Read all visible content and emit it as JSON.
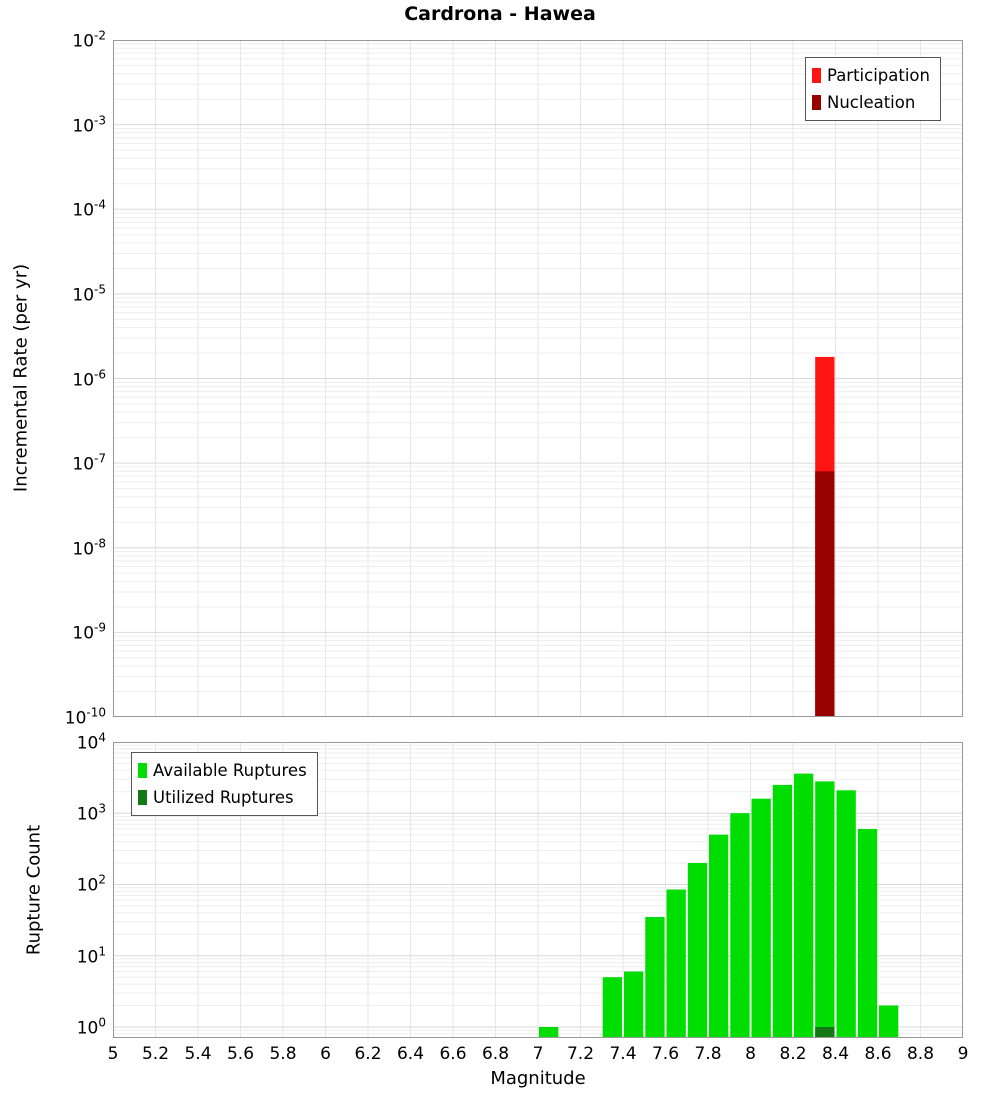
{
  "chart_data": [
    {
      "type": "bar",
      "title": "Cardrona - Hawea",
      "xlabel": "",
      "ylabel": "Incremental Rate (per yr)",
      "xscale": "linear",
      "yscale": "log",
      "xlim": [
        5,
        9
      ],
      "ylim": [
        1e-10,
        0.01
      ],
      "y_tick_exponents": [
        -2,
        -3,
        -4,
        -5,
        -6,
        -7,
        -8,
        -9,
        -10
      ],
      "bar_width": 0.1,
      "grid": true,
      "legend_position": "top-right",
      "series": [
        {
          "name": "Participation",
          "color": "#ff1414",
          "points": [
            {
              "x": 8.35,
              "y": 1.8e-06
            }
          ]
        },
        {
          "name": "Nucleation",
          "color": "#990000",
          "points": [
            {
              "x": 8.35,
              "y": 8e-08
            }
          ]
        }
      ]
    },
    {
      "type": "bar",
      "title": "",
      "xlabel": "Magnitude",
      "ylabel": "Rupture Count",
      "xscale": "linear",
      "yscale": "log",
      "xlim": [
        5,
        9
      ],
      "ylim": [
        0.7,
        10000
      ],
      "y_tick_exponents": [
        4,
        3,
        2,
        1,
        0
      ],
      "x_tick_labels": [
        "5",
        "5.2",
        "5.4",
        "5.6",
        "5.8",
        "6",
        "6.2",
        "6.4",
        "6.6",
        "6.8",
        "7",
        "7.2",
        "7.4",
        "7.6",
        "7.8",
        "8",
        "8.2",
        "8.4",
        "8.6",
        "8.8",
        "9"
      ],
      "bar_width": 0.1,
      "grid": true,
      "legend_position": "top-left",
      "series": [
        {
          "name": "Available Ruptures",
          "color": "#00dd00",
          "points": [
            {
              "x": 7.05,
              "y": 1
            },
            {
              "x": 7.35,
              "y": 5
            },
            {
              "x": 7.45,
              "y": 6
            },
            {
              "x": 7.55,
              "y": 35
            },
            {
              "x": 7.65,
              "y": 85
            },
            {
              "x": 7.75,
              "y": 200
            },
            {
              "x": 7.85,
              "y": 500
            },
            {
              "x": 7.95,
              "y": 1000
            },
            {
              "x": 8.05,
              "y": 1600
            },
            {
              "x": 8.15,
              "y": 2500
            },
            {
              "x": 8.25,
              "y": 3600
            },
            {
              "x": 8.35,
              "y": 2800
            },
            {
              "x": 8.45,
              "y": 2100
            },
            {
              "x": 8.55,
              "y": 600
            },
            {
              "x": 8.65,
              "y": 2
            }
          ]
        },
        {
          "name": "Utilized Ruptures",
          "color": "#147814",
          "points": [
            {
              "x": 8.35,
              "y": 1
            }
          ]
        }
      ]
    }
  ]
}
